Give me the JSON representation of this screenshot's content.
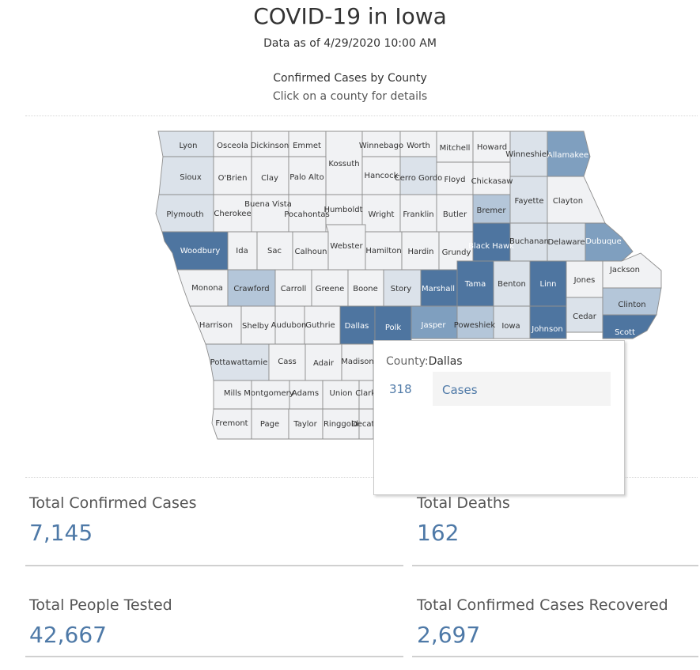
{
  "header": {
    "title": "COVID-19 in Iowa",
    "as_of": "Data as of 4/29/2020 10:00 AM"
  },
  "map": {
    "title": "Confirmed Cases by County",
    "subtitle": "Click on a county for details",
    "shade_colors": [
      "#f1f2f4",
      "#dbe2ea",
      "#b4c6d9",
      "#7f9fbf",
      "#4e75a0"
    ],
    "counties": [
      {
        "name": "Lyon",
        "shade": 1
      },
      {
        "name": "Osceola",
        "shade": 0
      },
      {
        "name": "Dickinson",
        "shade": 0
      },
      {
        "name": "Emmet",
        "shade": 0
      },
      {
        "name": "Kossuth",
        "shade": 0
      },
      {
        "name": "Winnebago",
        "shade": 0
      },
      {
        "name": "Worth",
        "shade": 0
      },
      {
        "name": "Mitchell",
        "shade": 0
      },
      {
        "name": "Howard",
        "shade": 0
      },
      {
        "name": "Winneshiek",
        "shade": 1
      },
      {
        "name": "Allamakee",
        "shade": 3
      },
      {
        "name": "Sioux",
        "shade": 1
      },
      {
        "name": "O'Brien",
        "shade": 0
      },
      {
        "name": "Clay",
        "shade": 0
      },
      {
        "name": "Palo Alto",
        "shade": 0
      },
      {
        "name": "Hancock",
        "shade": 0
      },
      {
        "name": "Cerro Gordo",
        "shade": 1
      },
      {
        "name": "Floyd",
        "shade": 0
      },
      {
        "name": "Chickasaw",
        "shade": 0
      },
      {
        "name": "Plymouth",
        "shade": 1
      },
      {
        "name": "Cherokee",
        "shade": 0
      },
      {
        "name": "Buena Vista",
        "shade": 0
      },
      {
        "name": "Pocahontas",
        "shade": 0
      },
      {
        "name": "Humboldt",
        "shade": 0
      },
      {
        "name": "Wright",
        "shade": 0
      },
      {
        "name": "Franklin",
        "shade": 0
      },
      {
        "name": "Butler",
        "shade": 0
      },
      {
        "name": "Bremer",
        "shade": 2
      },
      {
        "name": "Fayette",
        "shade": 1
      },
      {
        "name": "Clayton",
        "shade": 0
      },
      {
        "name": "Woodbury",
        "shade": 4
      },
      {
        "name": "Ida",
        "shade": 0
      },
      {
        "name": "Sac",
        "shade": 0
      },
      {
        "name": "Calhoun",
        "shade": 0
      },
      {
        "name": "Webster",
        "shade": 0
      },
      {
        "name": "Hamilton",
        "shade": 0
      },
      {
        "name": "Hardin",
        "shade": 0
      },
      {
        "name": "Grundy",
        "shade": 0
      },
      {
        "name": "Black Hawk",
        "shade": 4
      },
      {
        "name": "Buchanan",
        "shade": 1
      },
      {
        "name": "Delaware",
        "shade": 1
      },
      {
        "name": "Dubuque",
        "shade": 3
      },
      {
        "name": "Monona",
        "shade": 0
      },
      {
        "name": "Crawford",
        "shade": 2
      },
      {
        "name": "Carroll",
        "shade": 0
      },
      {
        "name": "Greene",
        "shade": 0
      },
      {
        "name": "Boone",
        "shade": 0
      },
      {
        "name": "Story",
        "shade": 1
      },
      {
        "name": "Marshall",
        "shade": 4
      },
      {
        "name": "Tama",
        "shade": 4
      },
      {
        "name": "Benton",
        "shade": 1
      },
      {
        "name": "Linn",
        "shade": 4
      },
      {
        "name": "Jones",
        "shade": 0
      },
      {
        "name": "Jackson",
        "shade": 0
      },
      {
        "name": "Harrison",
        "shade": 0
      },
      {
        "name": "Shelby",
        "shade": 0
      },
      {
        "name": "Audubon",
        "shade": 0
      },
      {
        "name": "Guthrie",
        "shade": 0
      },
      {
        "name": "Dallas",
        "shade": 4
      },
      {
        "name": "Polk",
        "shade": 4
      },
      {
        "name": "Jasper",
        "shade": 3
      },
      {
        "name": "Poweshiek",
        "shade": 2
      },
      {
        "name": "Iowa",
        "shade": 1
      },
      {
        "name": "Johnson",
        "shade": 4
      },
      {
        "name": "Cedar",
        "shade": 1
      },
      {
        "name": "Clinton",
        "shade": 2
      },
      {
        "name": "Scott",
        "shade": 4
      },
      {
        "name": "Pottawattamie",
        "shade": 1
      },
      {
        "name": "Cass",
        "shade": 0
      },
      {
        "name": "Adair",
        "shade": 0
      },
      {
        "name": "Madison",
        "shade": 0
      },
      {
        "name": "Mills",
        "shade": 0
      },
      {
        "name": "Montgomery",
        "shade": 0
      },
      {
        "name": "Adams",
        "shade": 0
      },
      {
        "name": "Union",
        "shade": 0
      },
      {
        "name": "Clarke",
        "shade": 0
      },
      {
        "name": "Fremont",
        "shade": 0
      },
      {
        "name": "Page",
        "shade": 0
      },
      {
        "name": "Taylor",
        "shade": 0
      },
      {
        "name": "Ringgold",
        "shade": 0
      },
      {
        "name": "Decatur",
        "shade": 0
      }
    ]
  },
  "tooltip": {
    "county_label": "County:",
    "county": "Dallas",
    "value": "318",
    "measure": "Cases"
  },
  "kpis": {
    "confirmed": {
      "label": "Total Confirmed Cases",
      "value": "7,145"
    },
    "deaths": {
      "label": "Total Deaths",
      "value": "162"
    },
    "tested": {
      "label": "Total People Tested",
      "value": "42,667"
    },
    "recovered": {
      "label": "Total Confirmed Cases Recovered",
      "value": "2,697"
    }
  }
}
